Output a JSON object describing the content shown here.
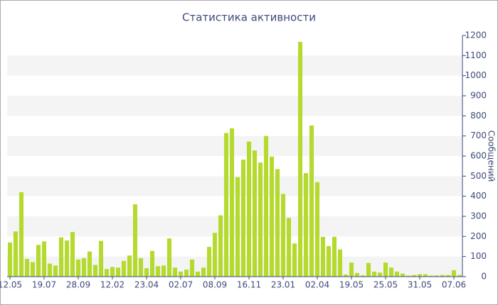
{
  "chart_data": {
    "type": "bar",
    "title": "Статистика активности",
    "y_label": "Сообщений",
    "categories": [
      "12.05",
      null,
      null,
      null,
      null,
      null,
      "19.07",
      null,
      null,
      null,
      null,
      null,
      "28.09",
      null,
      null,
      null,
      null,
      null,
      "12.02",
      null,
      null,
      null,
      null,
      null,
      "23.04",
      null,
      null,
      null,
      null,
      null,
      "02.07",
      null,
      null,
      null,
      null,
      null,
      "08.09",
      null,
      null,
      null,
      null,
      null,
      "16.11",
      null,
      null,
      null,
      null,
      null,
      "23.01",
      null,
      null,
      null,
      null,
      null,
      "02.04",
      null,
      null,
      null,
      null,
      null,
      "19.05",
      null,
      null,
      null,
      null,
      null,
      "25.05",
      null,
      null,
      null,
      null,
      null,
      "31.05",
      null,
      null,
      null,
      null,
      null,
      "07.06",
      null
    ],
    "values": [
      170,
      225,
      420,
      88,
      72,
      158,
      175,
      65,
      55,
      195,
      180,
      222,
      85,
      92,
      125,
      58,
      178,
      38,
      48,
      45,
      78,
      105,
      360,
      92,
      42,
      128,
      52,
      55,
      190,
      45,
      25,
      35,
      85,
      25,
      45,
      148,
      218,
      305,
      715,
      738,
      495,
      582,
      672,
      628,
      568,
      700,
      597,
      535,
      412,
      292,
      165,
      1168,
      515,
      752,
      470,
      198,
      152,
      198,
      135,
      10,
      70,
      18,
      6,
      68,
      25,
      20,
      70,
      45,
      25,
      15,
      5,
      8,
      12,
      12,
      5,
      6,
      8,
      8,
      32,
      8
    ],
    "color": "#b5da2e",
    "ylim": [
      0,
      1200
    ],
    "yticks": [
      0,
      100,
      200,
      300,
      400,
      500,
      600,
      700,
      800,
      900,
      1000,
      1100,
      1200
    ],
    "grid": true
  }
}
